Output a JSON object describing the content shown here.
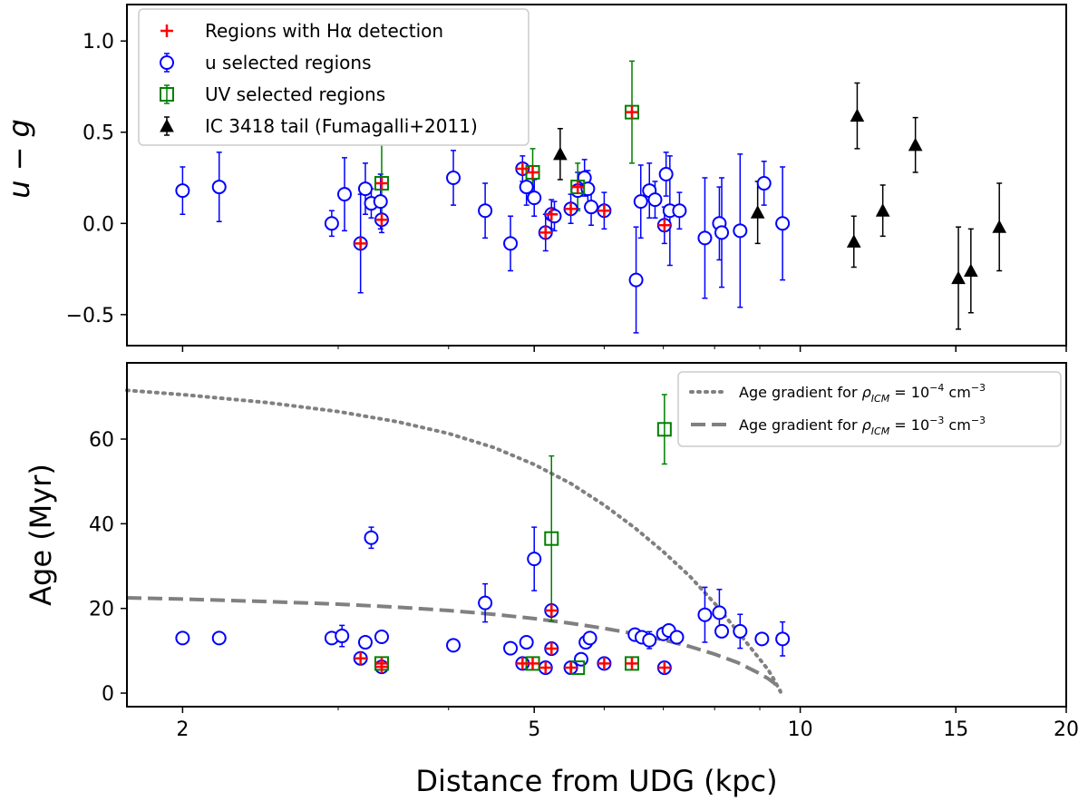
{
  "colors": {
    "red": "#ff0000",
    "blue": "#0000ff",
    "green": "#008000",
    "black": "#000000",
    "gray": "#808080"
  },
  "chart_data": [
    {
      "id": "top",
      "type": "scatter",
      "title": "",
      "xlabel": "",
      "ylabel": "u − g",
      "xscale": "log",
      "xlim": [
        1.73,
        20
      ],
      "ylim": [
        -0.67,
        1.2
      ],
      "yticks": [
        {
          "v": 1.0,
          "label": "1.0"
        },
        {
          "v": 0.5,
          "label": "0.5"
        },
        {
          "v": 0.0,
          "label": "0.0"
        },
        {
          "v": -0.5,
          "label": "−0.5"
        }
      ],
      "legend": {
        "position": "top-left",
        "entries": [
          {
            "series": "halpha",
            "label": "Regions with Hα detection"
          },
          {
            "series": "u",
            "label": "u selected regions"
          },
          {
            "series": "uv",
            "label": "UV selected regions"
          },
          {
            "series": "ic3418",
            "label": "IC 3418 tail (Fumagalli+2011)"
          }
        ]
      },
      "series": [
        {
          "name": "u selected regions",
          "key": "u",
          "marker": "circle",
          "color": "#0000ff",
          "points": [
            {
              "x": 2.0,
              "y": 0.18,
              "err": 0.13
            },
            {
              "x": 2.2,
              "y": 0.2,
              "err": 0.19
            },
            {
              "x": 2.95,
              "y": 0.0,
              "err": 0.07
            },
            {
              "x": 3.05,
              "y": 0.16,
              "err": 0.2
            },
            {
              "x": 3.22,
              "y": 0.19,
              "err": 0.14
            },
            {
              "x": 3.27,
              "y": 0.11,
              "err": 0.08
            },
            {
              "x": 3.35,
              "y": 0.12,
              "err": 0.15
            },
            {
              "x": 3.36,
              "y": 0.02,
              "err": 0.07
            },
            {
              "x": 3.18,
              "y": -0.11,
              "err": 0.27
            },
            {
              "x": 4.05,
              "y": 0.25,
              "err": 0.15
            },
            {
              "x": 4.4,
              "y": 0.07,
              "err": 0.15
            },
            {
              "x": 4.7,
              "y": -0.11,
              "err": 0.15
            },
            {
              "x": 4.85,
              "y": 0.3,
              "err": 0.07
            },
            {
              "x": 4.9,
              "y": 0.2,
              "err": 0.1
            },
            {
              "x": 5.0,
              "y": 0.14,
              "err": 0.1
            },
            {
              "x": 5.15,
              "y": -0.05,
              "err": 0.1
            },
            {
              "x": 5.23,
              "y": 0.05,
              "err": 0.08
            },
            {
              "x": 5.27,
              "y": 0.04,
              "err": 0.08
            },
            {
              "x": 5.5,
              "y": 0.08,
              "err": 0.08
            },
            {
              "x": 5.6,
              "y": 0.18,
              "err": 0.1
            },
            {
              "x": 5.7,
              "y": 0.25,
              "err": 0.1
            },
            {
              "x": 5.75,
              "y": 0.19,
              "err": 0.1
            },
            {
              "x": 5.8,
              "y": 0.09,
              "err": 0.1
            },
            {
              "x": 6.0,
              "y": 0.07,
              "err": 0.1
            },
            {
              "x": 6.52,
              "y": -0.31,
              "err": 0.29
            },
            {
              "x": 6.6,
              "y": 0.12,
              "err": 0.2
            },
            {
              "x": 6.75,
              "y": 0.18,
              "err": 0.15
            },
            {
              "x": 6.85,
              "y": 0.13,
              "err": 0.1
            },
            {
              "x": 7.05,
              "y": 0.27,
              "err": 0.12
            },
            {
              "x": 7.12,
              "y": 0.07,
              "err": 0.3
            },
            {
              "x": 7.3,
              "y": 0.07,
              "err": 0.1
            },
            {
              "x": 7.02,
              "y": -0.01,
              "err": 0.1
            },
            {
              "x": 7.8,
              "y": -0.08,
              "err": 0.33
            },
            {
              "x": 8.1,
              "y": 0.0,
              "err": 0.2
            },
            {
              "x": 8.15,
              "y": -0.05,
              "err": 0.3
            },
            {
              "x": 8.55,
              "y": -0.04,
              "err": 0.42
            },
            {
              "x": 9.1,
              "y": 0.22,
              "err": 0.12
            },
            {
              "x": 9.55,
              "y": 0.0,
              "err": 0.31
            }
          ]
        },
        {
          "name": "UV selected regions",
          "key": "uv",
          "marker": "square",
          "color": "#008000",
          "points": [
            {
              "x": 3.36,
              "y": 0.22,
              "err": 0.22
            },
            {
              "x": 4.98,
              "y": 0.28,
              "err": 0.13
            },
            {
              "x": 5.6,
              "y": 0.2,
              "err": 0.13
            },
            {
              "x": 6.45,
              "y": 0.61,
              "err": 0.28
            }
          ]
        },
        {
          "name": "Regions with Hα detection",
          "key": "halpha",
          "marker": "plus",
          "color": "#ff0000",
          "points": [
            {
              "x": 3.18,
              "y": -0.11
            },
            {
              "x": 3.36,
              "y": 0.02
            },
            {
              "x": 3.36,
              "y": 0.22
            },
            {
              "x": 4.85,
              "y": 0.3
            },
            {
              "x": 4.98,
              "y": 0.28
            },
            {
              "x": 5.15,
              "y": -0.05
            },
            {
              "x": 5.23,
              "y": 0.05
            },
            {
              "x": 5.5,
              "y": 0.08
            },
            {
              "x": 5.6,
              "y": 0.2
            },
            {
              "x": 6.0,
              "y": 0.07
            },
            {
              "x": 6.45,
              "y": 0.61
            },
            {
              "x": 7.02,
              "y": -0.01
            }
          ]
        },
        {
          "name": "IC 3418 tail (Fumagalli+2011)",
          "key": "ic3418",
          "marker": "triangle",
          "color": "#000000",
          "points": [
            {
              "x": 5.35,
              "y": 0.38,
              "err": 0.14
            },
            {
              "x": 8.95,
              "y": 0.06,
              "err": 0.17
            },
            {
              "x": 11.6,
              "y": 0.59,
              "err": 0.18
            },
            {
              "x": 11.5,
              "y": -0.1,
              "err": 0.14
            },
            {
              "x": 12.4,
              "y": 0.07,
              "err": 0.14
            },
            {
              "x": 13.5,
              "y": 0.43,
              "err": 0.15
            },
            {
              "x": 15.1,
              "y": -0.3,
              "err": 0.28
            },
            {
              "x": 15.6,
              "y": -0.26,
              "err": 0.23
            },
            {
              "x": 16.8,
              "y": -0.02,
              "err": 0.24
            }
          ]
        }
      ]
    },
    {
      "id": "bottom",
      "type": "scatter",
      "title": "",
      "xlabel": "Distance from UDG (kpc)",
      "ylabel": "Age (Myr)",
      "xscale": "log",
      "xlim": [
        1.73,
        20
      ],
      "ylim": [
        -3.2,
        78
      ],
      "xticks": [
        {
          "v": 2,
          "label": "2"
        },
        {
          "v": 5,
          "label": "5"
        },
        {
          "v": 10,
          "label": "10"
        },
        {
          "v": 15,
          "label": "15"
        },
        {
          "v": 20,
          "label": "20"
        }
      ],
      "yticks": [
        {
          "v": 0,
          "label": "0"
        },
        {
          "v": 20,
          "label": "20"
        },
        {
          "v": 40,
          "label": "40"
        },
        {
          "v": 60,
          "label": "60"
        }
      ],
      "legend": {
        "position": "top-right",
        "entries": [
          {
            "line": "dotted",
            "prefix": "Age gradient for ",
            "rho": "ρ",
            "sub": "ICM",
            "mid": " = 10",
            "sup": "−4",
            "unit": " cm",
            "unitsup": "−3"
          },
          {
            "line": "dashed",
            "prefix": "Age gradient for ",
            "rho": "ρ",
            "sub": "ICM",
            "mid": " = 10",
            "sup": "−3",
            "unit": " cm",
            "unitsup": "−3"
          }
        ]
      },
      "curves": [
        {
          "name": "Age gradient (10^-4)",
          "style": "dotted",
          "color": "#808080",
          "x": [
            1.73,
            2.0,
            2.5,
            3.0,
            3.5,
            4.0,
            4.5,
            5.0,
            5.5,
            6.0,
            6.5,
            7.0,
            7.5,
            8.0,
            8.5,
            9.0,
            9.2,
            9.35,
            9.45,
            9.5
          ],
          "y": [
            71.5,
            70.5,
            68.6,
            66.5,
            64.1,
            61.3,
            58.0,
            54.0,
            49.5,
            44.4,
            39.0,
            33.4,
            27.6,
            21.2,
            14.5,
            8.0,
            5.5,
            3.0,
            1.2,
            0.3
          ]
        },
        {
          "name": "Age gradient (10^-3)",
          "style": "dashed",
          "color": "#808080",
          "x": [
            1.73,
            2.0,
            2.5,
            3.0,
            3.5,
            4.0,
            4.5,
            5.0,
            5.5,
            6.0,
            6.5,
            7.0,
            7.5,
            8.0,
            8.5,
            9.0,
            9.2,
            9.35,
            9.45,
            9.5
          ],
          "y": [
            22.5,
            22.2,
            21.6,
            21.0,
            20.3,
            19.5,
            18.6,
            17.6,
            16.5,
            15.3,
            14.0,
            12.6,
            11.0,
            9.2,
            7.2,
            4.6,
            3.4,
            2.3,
            1.2,
            0.5
          ]
        }
      ],
      "series": [
        {
          "name": "u selected regions",
          "key": "u",
          "marker": "circle",
          "color": "#0000ff",
          "points": [
            {
              "x": 2.0,
              "y": 13.0
            },
            {
              "x": 2.2,
              "y": 13.0
            },
            {
              "x": 2.95,
              "y": 13.0
            },
            {
              "x": 3.03,
              "y": 13.5,
              "err": 2.5
            },
            {
              "x": 3.22,
              "y": 12.0
            },
            {
              "x": 3.27,
              "y": 36.7,
              "err": 2.5
            },
            {
              "x": 3.36,
              "y": 13.3
            },
            {
              "x": 3.36,
              "y": 6.2
            },
            {
              "x": 3.18,
              "y": 8.2
            },
            {
              "x": 4.05,
              "y": 11.3
            },
            {
              "x": 4.4,
              "y": 21.3,
              "err": 4.5
            },
            {
              "x": 4.7,
              "y": 10.6
            },
            {
              "x": 4.85,
              "y": 7.0
            },
            {
              "x": 4.9,
              "y": 12.0
            },
            {
              "x": 5.0,
              "y": 31.7,
              "err": 7.5
            },
            {
              "x": 5.15,
              "y": 6.0
            },
            {
              "x": 5.23,
              "y": 10.5
            },
            {
              "x": 5.23,
              "y": 19.5
            },
            {
              "x": 5.5,
              "y": 6.0
            },
            {
              "x": 5.65,
              "y": 8.0
            },
            {
              "x": 5.72,
              "y": 12.0
            },
            {
              "x": 5.78,
              "y": 13.0
            },
            {
              "x": 6.0,
              "y": 7.0
            },
            {
              "x": 6.5,
              "y": 13.8
            },
            {
              "x": 6.62,
              "y": 13.2
            },
            {
              "x": 6.75,
              "y": 12.5,
              "err": 2.0
            },
            {
              "x": 7.0,
              "y": 14.0
            },
            {
              "x": 7.1,
              "y": 14.8
            },
            {
              "x": 7.25,
              "y": 13.2
            },
            {
              "x": 7.02,
              "y": 6.0
            },
            {
              "x": 7.8,
              "y": 18.5,
              "err": 6.5
            },
            {
              "x": 8.1,
              "y": 19.0,
              "err": 5.5
            },
            {
              "x": 8.15,
              "y": 14.6
            },
            {
              "x": 8.55,
              "y": 14.6,
              "err": 4.0
            },
            {
              "x": 9.05,
              "y": 12.8
            },
            {
              "x": 9.55,
              "y": 12.8,
              "err": 4.0
            }
          ]
        },
        {
          "name": "UV selected regions",
          "key": "uv",
          "marker": "square",
          "color": "#008000",
          "points": [
            {
              "x": 3.36,
              "y": 7.0
            },
            {
              "x": 4.98,
              "y": 7.0
            },
            {
              "x": 5.23,
              "y": 36.5,
              "err": 19.5
            },
            {
              "x": 5.6,
              "y": 6.0
            },
            {
              "x": 6.45,
              "y": 7.0
            },
            {
              "x": 7.02,
              "y": 62.3,
              "err": 8.2
            }
          ]
        },
        {
          "name": "Regions with Hα detection",
          "key": "halpha",
          "marker": "plus",
          "color": "#ff0000",
          "points": [
            {
              "x": 3.18,
              "y": 8.2
            },
            {
              "x": 3.36,
              "y": 6.2
            },
            {
              "x": 3.36,
              "y": 7.0
            },
            {
              "x": 4.85,
              "y": 7.0
            },
            {
              "x": 4.98,
              "y": 7.0
            },
            {
              "x": 5.15,
              "y": 6.0
            },
            {
              "x": 5.23,
              "y": 10.5
            },
            {
              "x": 5.23,
              "y": 19.5
            },
            {
              "x": 5.5,
              "y": 6.0
            },
            {
              "x": 6.0,
              "y": 7.0
            },
            {
              "x": 6.45,
              "y": 7.0
            },
            {
              "x": 7.02,
              "y": 6.0
            }
          ]
        }
      ]
    }
  ]
}
